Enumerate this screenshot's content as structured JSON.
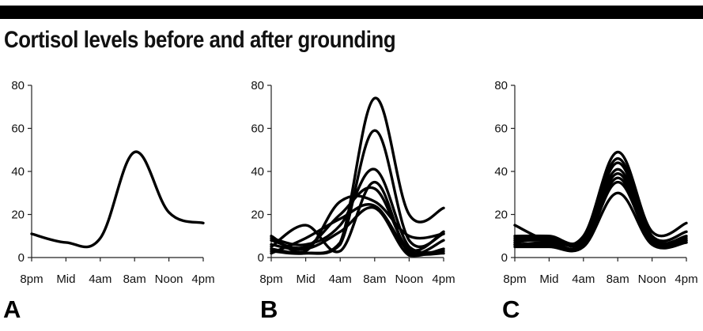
{
  "title": "Cortisol levels before and after grounding",
  "chart_data": [
    {
      "type": "line",
      "panel_label": "A",
      "x_ticks": [
        "8pm",
        "Mid",
        "4am",
        "8am",
        "Noon",
        "4pm"
      ],
      "y_ticks": [
        "0",
        "20",
        "40",
        "60",
        "80"
      ],
      "ylim": [
        0,
        80
      ],
      "x": [
        0,
        1,
        2,
        3,
        4,
        5
      ],
      "series": [
        {
          "values": [
            11,
            7,
            9,
            49,
            21,
            16
          ]
        }
      ]
    },
    {
      "type": "line",
      "panel_label": "B",
      "x_ticks": [
        "8pm",
        "Mid",
        "4am",
        "8am",
        "Noon",
        "4pm"
      ],
      "y_ticks": [
        "0",
        "20",
        "40",
        "60",
        "80"
      ],
      "ylim": [
        0,
        80
      ],
      "x": [
        0,
        1,
        2,
        3,
        4,
        5
      ],
      "series": [
        {
          "values": [
            3,
            2,
            7,
            74,
            20,
            23
          ]
        },
        {
          "values": [
            4,
            2,
            6,
            59,
            8,
            11
          ]
        },
        {
          "values": [
            9,
            6,
            15,
            41,
            5,
            3
          ]
        },
        {
          "values": [
            5,
            15,
            3,
            35,
            2,
            8
          ]
        },
        {
          "values": [
            8,
            5,
            20,
            32,
            4,
            12
          ]
        },
        {
          "values": [
            10,
            3,
            26,
            26,
            10,
            11
          ]
        },
        {
          "values": [
            2,
            9,
            18,
            24,
            3,
            2
          ]
        },
        {
          "values": [
            6,
            4,
            12,
            23,
            1,
            4
          ]
        }
      ]
    },
    {
      "type": "line",
      "panel_label": "C",
      "x_ticks": [
        "8pm",
        "Mid",
        "4am",
        "8am",
        "Noon",
        "4pm"
      ],
      "y_ticks": [
        "0",
        "20",
        "40",
        "60",
        "80"
      ],
      "ylim": [
        0,
        80
      ],
      "x": [
        0,
        1,
        2,
        3,
        4,
        5
      ],
      "series": [
        {
          "values": [
            15,
            8,
            10,
            49,
            12,
            16
          ]
        },
        {
          "values": [
            10,
            10,
            9,
            46,
            10,
            12
          ]
        },
        {
          "values": [
            9,
            9,
            8,
            44,
            9,
            10
          ]
        },
        {
          "values": [
            8,
            8,
            8,
            41,
            9,
            9
          ]
        },
        {
          "values": [
            7,
            9,
            7,
            39,
            8,
            8
          ]
        },
        {
          "values": [
            6,
            7,
            6,
            37,
            7,
            8
          ]
        },
        {
          "values": [
            6,
            6,
            6,
            35,
            7,
            7
          ]
        },
        {
          "values": [
            5,
            5,
            5,
            30,
            6,
            7
          ]
        }
      ]
    }
  ]
}
